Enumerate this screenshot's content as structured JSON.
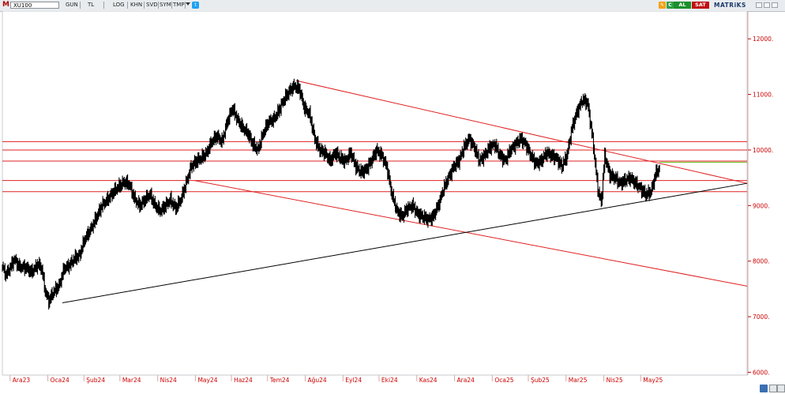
{
  "toolbar": {
    "logo": "M",
    "symbol": "XU100",
    "buttons": [
      "GUN",
      "TL",
      "LOG",
      "KHN",
      "SVD",
      "SYM",
      "TMP"
    ],
    "twitter_icon": "twitter-icon",
    "buy_label": "AL",
    "sell_label": "SAT",
    "brand": "MATRiKS",
    "quick_icons": [
      "C",
      "C"
    ]
  },
  "colors": {
    "price": "#000000",
    "trend_red": "#e02020",
    "trend_black": "#000000",
    "support_line": "#e02020",
    "axis_text": "#cc0000",
    "grid_axis": "#d9a9a9",
    "last_price_line": "#6fbf1f"
  },
  "chart_data": {
    "type": "candlestick",
    "symbol": "XU100",
    "y_ticks": [
      6000,
      7000,
      8000,
      9000,
      10000,
      11000,
      12000
    ],
    "y_tick_labels": [
      "6000.",
      "7000.",
      "8000.",
      "9000.",
      "10000.",
      "11000.",
      "12000."
    ],
    "ylim": [
      5950,
      12500
    ],
    "x_tick_labels": [
      "Ara23",
      "Oca24",
      "Şub24",
      "Mar24",
      "Nis24",
      "May24",
      "Haz24",
      "Tem24",
      "Ağu24",
      "Eyl24",
      "Eki24",
      "Kas24",
      "Ara24",
      "Oca25",
      "Şub25",
      "Mar25",
      "Nis25",
      "May25"
    ],
    "x_tick_positions": [
      4.5,
      26.5,
      47.5,
      68.5,
      90.5,
      112.5,
      133.5,
      154.5,
      176.5,
      198.5,
      219.5,
      241.5,
      263.5,
      285.5,
      306.5,
      328.5,
      350.5,
      372
    ],
    "x_range": [
      0,
      434
    ],
    "price_path": [
      [
        0,
        7900
      ],
      [
        2,
        7750
      ],
      [
        4,
        7850
      ],
      [
        7,
        8030
      ],
      [
        10,
        7900
      ],
      [
        14,
        7880
      ],
      [
        17,
        7800
      ],
      [
        21,
        7950
      ],
      [
        23,
        7850
      ],
      [
        25,
        7450
      ],
      [
        27,
        7280
      ],
      [
        30,
        7460
      ],
      [
        33,
        7550
      ],
      [
        36,
        7870
      ],
      [
        39,
        7920
      ],
      [
        42,
        8050
      ],
      [
        45,
        8100
      ],
      [
        48,
        8400
      ],
      [
        52,
        8600
      ],
      [
        55,
        8800
      ],
      [
        58,
        9000
      ],
      [
        61,
        9100
      ],
      [
        65,
        9250
      ],
      [
        68,
        9350
      ],
      [
        71,
        9420
      ],
      [
        74,
        9380
      ],
      [
        77,
        9120
      ],
      [
        80,
        9000
      ],
      [
        83,
        9100
      ],
      [
        86,
        9200
      ],
      [
        89,
        9000
      ],
      [
        92,
        8900
      ],
      [
        95,
        9000
      ],
      [
        98,
        9100
      ],
      [
        101,
        8950
      ],
      [
        104,
        9100
      ],
      [
        107,
        9400
      ],
      [
        110,
        9700
      ],
      [
        113,
        9800
      ],
      [
        116,
        9850
      ],
      [
        119,
        9950
      ],
      [
        122,
        10150
      ],
      [
        125,
        10250
      ],
      [
        128,
        10150
      ],
      [
        131,
        10500
      ],
      [
        134,
        10750
      ],
      [
        137,
        10550
      ],
      [
        140,
        10400
      ],
      [
        143,
        10300
      ],
      [
        146,
        10100
      ],
      [
        149,
        10000
      ],
      [
        152,
        10300
      ],
      [
        155,
        10500
      ],
      [
        158,
        10550
      ],
      [
        161,
        10700
      ],
      [
        164,
        10900
      ],
      [
        167,
        11050
      ],
      [
        170,
        11150
      ],
      [
        173,
        11100
      ],
      [
        176,
        10750
      ],
      [
        179,
        10650
      ],
      [
        182,
        10200
      ],
      [
        185,
        10000
      ],
      [
        188,
        9950
      ],
      [
        191,
        9800
      ],
      [
        194,
        9950
      ],
      [
        197,
        9850
      ],
      [
        200,
        9800
      ],
      [
        203,
        9950
      ],
      [
        206,
        9700
      ],
      [
        209,
        9600
      ],
      [
        212,
        9650
      ],
      [
        215,
        9800
      ],
      [
        218,
        10000
      ],
      [
        221,
        9900
      ],
      [
        224,
        9700
      ],
      [
        227,
        9200
      ],
      [
        230,
        8900
      ],
      [
        233,
        8800
      ],
      [
        236,
        8950
      ],
      [
        239,
        9000
      ],
      [
        242,
        8850
      ],
      [
        245,
        8800
      ],
      [
        248,
        8750
      ],
      [
        251,
        8800
      ],
      [
        254,
        9000
      ],
      [
        257,
        9300
      ],
      [
        260,
        9500
      ],
      [
        263,
        9700
      ],
      [
        266,
        9800
      ],
      [
        269,
        10050
      ],
      [
        272,
        10200
      ],
      [
        275,
        10050
      ],
      [
        278,
        9800
      ],
      [
        281,
        9900
      ],
      [
        284,
        10050
      ],
      [
        287,
        10100
      ],
      [
        290,
        9900
      ],
      [
        293,
        9800
      ],
      [
        296,
        10000
      ],
      [
        299,
        10100
      ],
      [
        302,
        10200
      ],
      [
        305,
        10100
      ],
      [
        308,
        9900
      ],
      [
        311,
        9750
      ],
      [
        314,
        9800
      ],
      [
        317,
        9950
      ],
      [
        320,
        9900
      ],
      [
        323,
        9850
      ],
      [
        326,
        9700
      ],
      [
        329,
        9900
      ],
      [
        332,
        10400
      ],
      [
        335,
        10700
      ],
      [
        338,
        10900
      ],
      [
        341,
        10850
      ],
      [
        344,
        10200
      ],
      [
        347,
        9300
      ],
      [
        349,
        9050
      ],
      [
        351,
        9900
      ],
      [
        354,
        9550
      ],
      [
        357,
        9500
      ],
      [
        360,
        9400
      ],
      [
        363,
        9450
      ],
      [
        366,
        9500
      ],
      [
        369,
        9400
      ],
      [
        372,
        9300
      ],
      [
        375,
        9200
      ],
      [
        378,
        9250
      ],
      [
        381,
        9600
      ],
      [
        383,
        9650
      ]
    ],
    "trendlines": [
      {
        "color": "red",
        "from": [
          171,
          11250
        ],
        "to": [
          434,
          9400
        ]
      },
      {
        "color": "red",
        "from": [
          112,
          9450
        ],
        "to": [
          434,
          7550
        ]
      },
      {
        "color": "black",
        "from": [
          35,
          7250
        ],
        "to": [
          434,
          9400
        ]
      }
    ],
    "horizontal_lines": [
      {
        "color": "red",
        "y": 10150
      },
      {
        "color": "red",
        "y": 10000
      },
      {
        "color": "red",
        "y": 9800
      },
      {
        "color": "red",
        "y": 9450
      },
      {
        "color": "red",
        "y": 9250
      },
      {
        "color": "green",
        "y": 9780,
        "x_from": 383
      }
    ]
  }
}
